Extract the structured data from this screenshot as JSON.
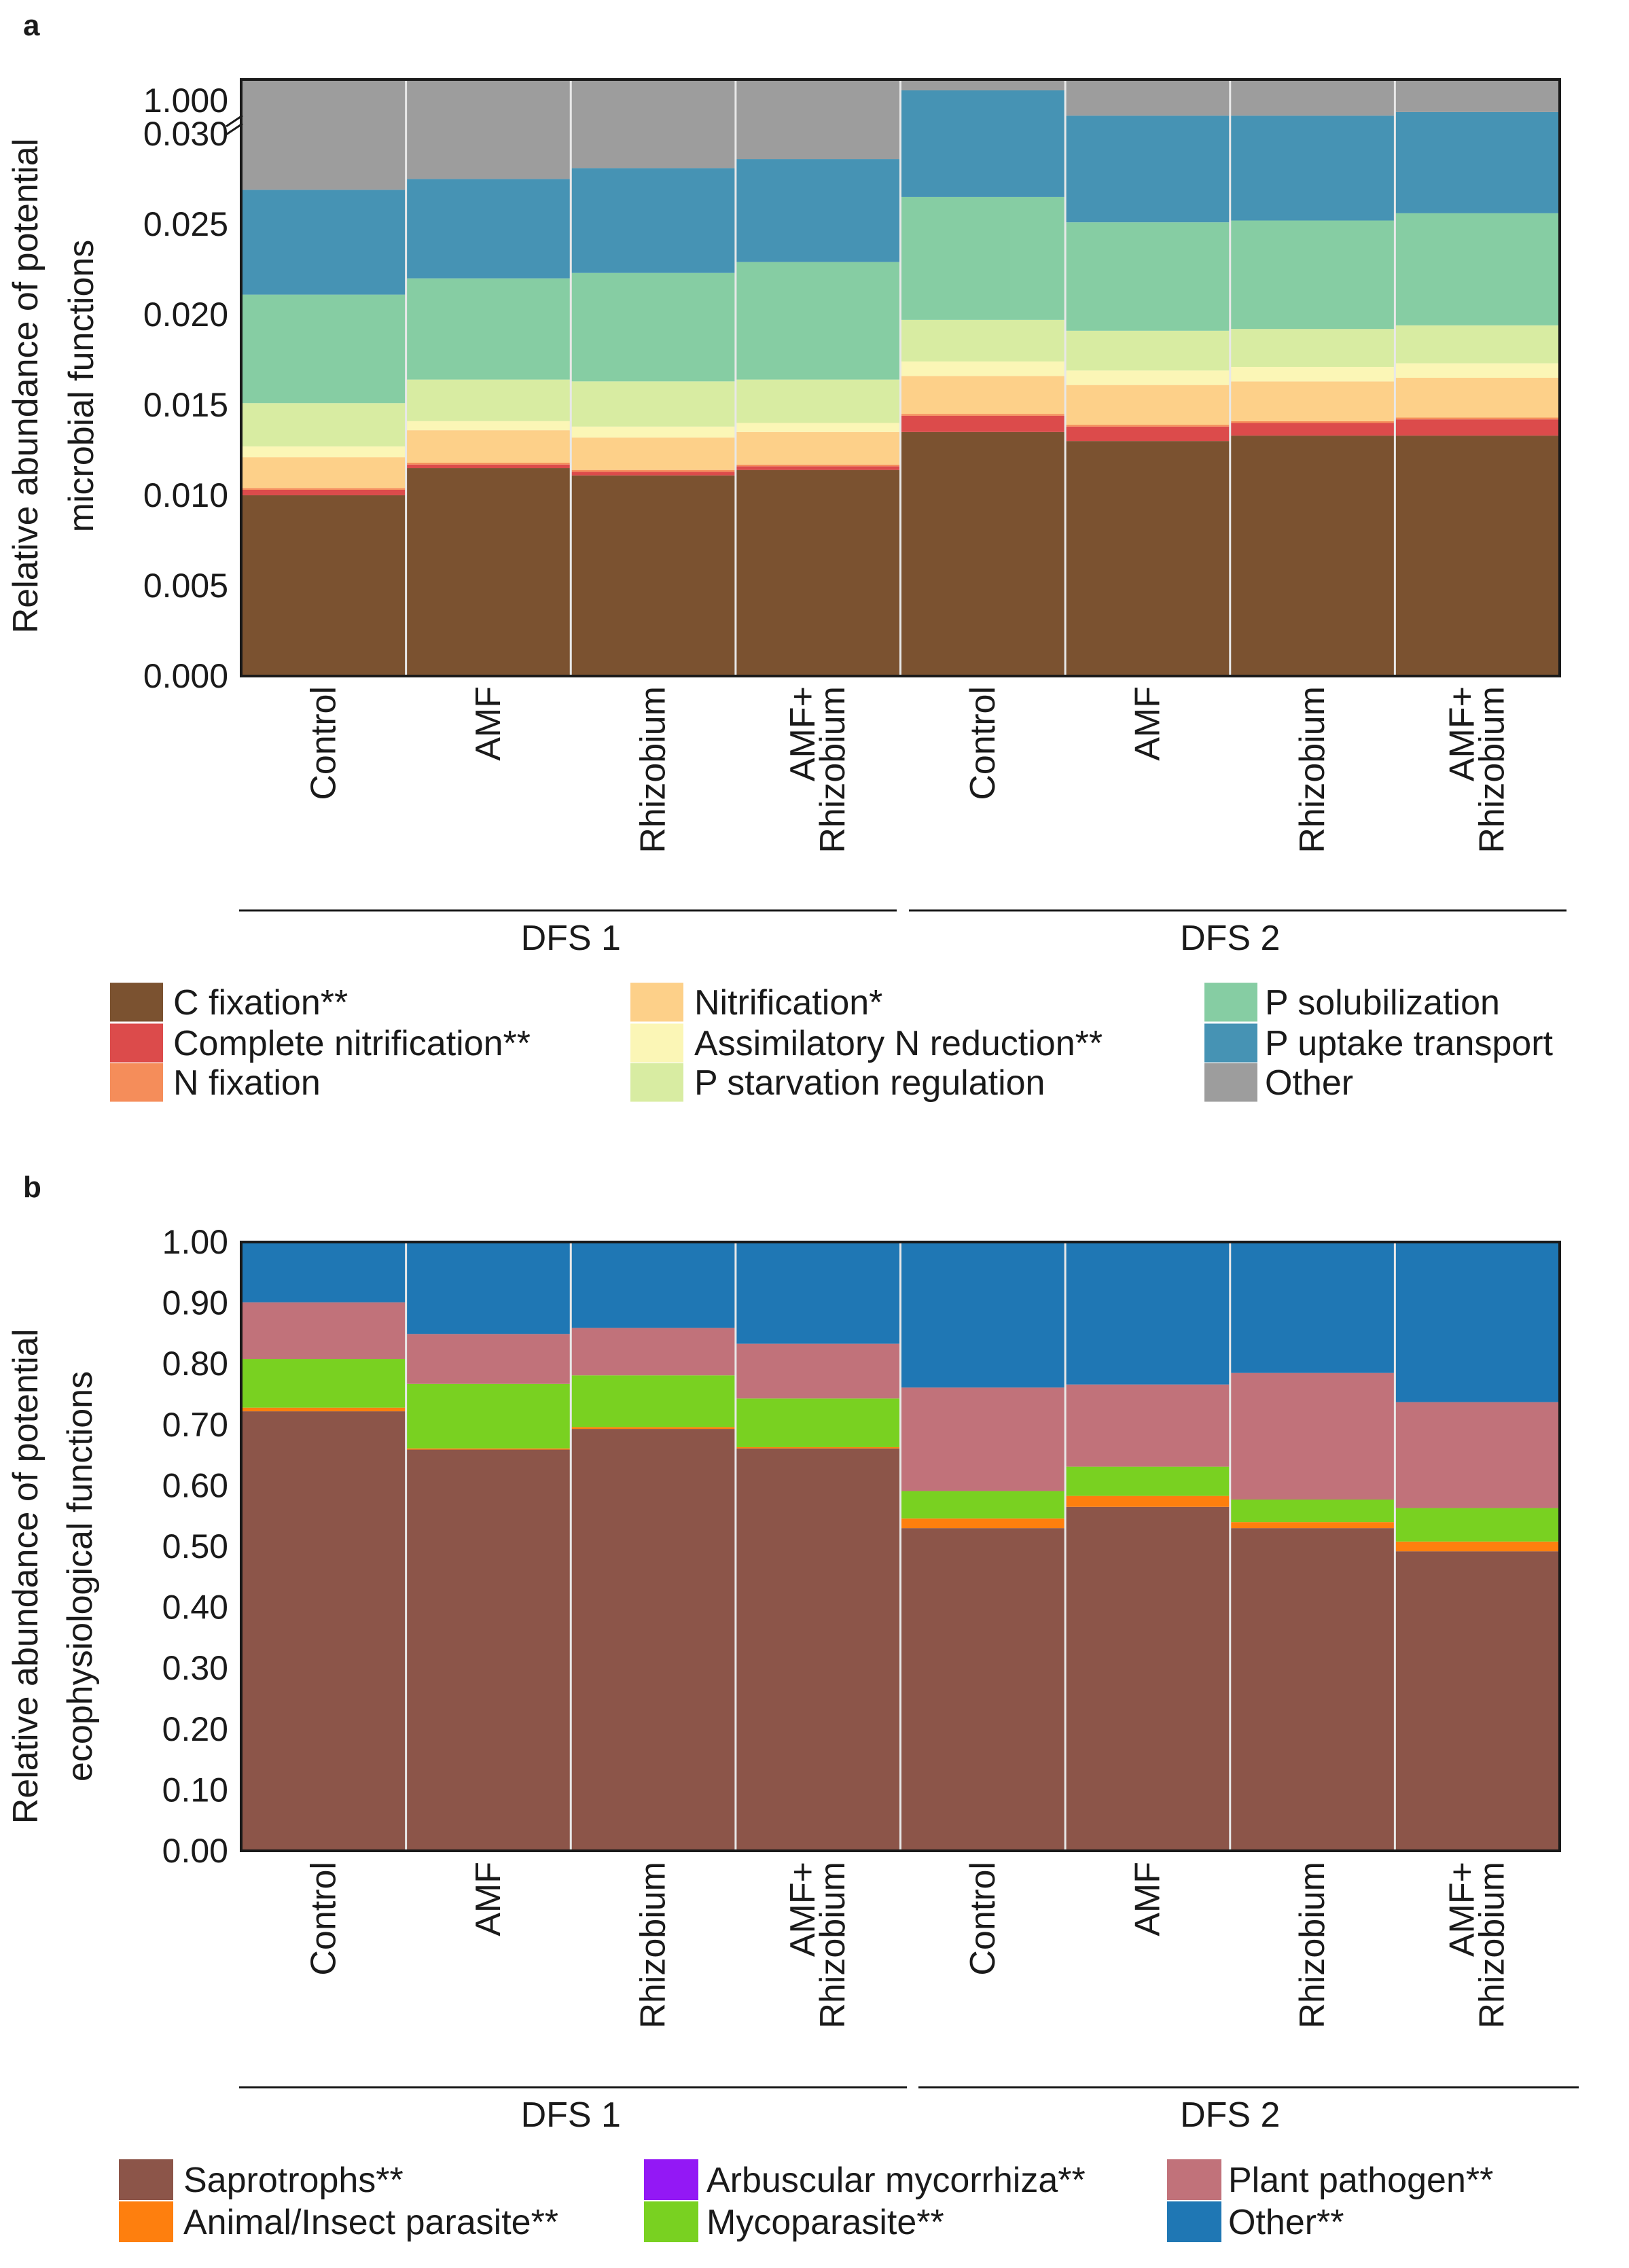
{
  "chart_data": [
    {
      "type": "bar",
      "stacked": true,
      "panel": "a",
      "ylabel_lines": [
        "Relative abundance of potential",
        "microbial functions"
      ],
      "yticks": [
        "0.000",
        "0.005",
        "0.010",
        "0.015",
        "0.020",
        "0.025",
        "0.030",
        "1.000"
      ],
      "ylim": [
        0,
        0.033
      ],
      "axis_break": true,
      "categories": [
        [
          "Control"
        ],
        [
          "AMF"
        ],
        [
          "Rhizobium"
        ],
        [
          "AMF+",
          "Rhizobium"
        ],
        [
          "Control"
        ],
        [
          "AMF"
        ],
        [
          "Rhizobium"
        ],
        [
          "AMF+",
          "Rhizobium"
        ]
      ],
      "groups": [
        {
          "label": "DFS 1",
          "members": [
            0,
            1,
            2,
            3
          ]
        },
        {
          "label": "DFS 2",
          "members": [
            4,
            5,
            6,
            7
          ]
        }
      ],
      "series": [
        {
          "name": "C fixation**",
          "color": "#7b5230",
          "values": [
            0.01,
            0.0115,
            0.0111,
            0.0114,
            0.0135,
            0.013,
            0.0133,
            0.0133
          ]
        },
        {
          "name": "Complete nitrification**",
          "color": "#dc4b4b",
          "values": [
            0.0003,
            0.0002,
            0.0002,
            0.0002,
            0.0009,
            0.0008,
            0.0007,
            0.0009
          ]
        },
        {
          "name": "N fixation",
          "color": "#f58d5a",
          "values": [
            0.0001,
            0.0001,
            0.0001,
            0.0001,
            0.0001,
            0.0001,
            0.0001,
            0.0001
          ]
        },
        {
          "name": "Nitrification*",
          "color": "#fdd089",
          "values": [
            0.0017,
            0.0018,
            0.0018,
            0.0018,
            0.0021,
            0.0022,
            0.0022,
            0.0022
          ]
        },
        {
          "name": "Assimilatory N reduction**",
          "color": "#fbf6b6",
          "values": [
            0.0006,
            0.0005,
            0.0006,
            0.0005,
            0.0008,
            0.0008,
            0.0008,
            0.0008
          ]
        },
        {
          "name": "P starvation regulation",
          "color": "#d8eca2",
          "values": [
            0.0024,
            0.0023,
            0.0025,
            0.0024,
            0.0023,
            0.0022,
            0.0021,
            0.0021
          ]
        },
        {
          "name": "P solubilization",
          "color": "#86cda3",
          "values": [
            0.006,
            0.0056,
            0.006,
            0.0065,
            0.0068,
            0.006,
            0.006,
            0.0062
          ]
        },
        {
          "name": "P uptake transport",
          "color": "#4693b4",
          "values": [
            0.0058,
            0.0055,
            0.0058,
            0.0057,
            0.0059,
            0.0059,
            0.0058,
            0.0056
          ]
        },
        {
          "name": "Other",
          "color": "#9d9d9d",
          "values": [
            0.9731,
            0.9725,
            0.9719,
            0.9714,
            0.9676,
            0.969,
            0.969,
            0.9688
          ]
        }
      ]
    },
    {
      "type": "bar",
      "stacked": true,
      "panel": "b",
      "ylabel_lines": [
        "Relative abundance of potential",
        "ecophysiological  functions"
      ],
      "yticks": [
        "0.00",
        "0.10",
        "0.20",
        "0.30",
        "0.40",
        "0.50",
        "0.60",
        "0.70",
        "0.80",
        "0.90",
        "1.00"
      ],
      "ylim": [
        0,
        1.0
      ],
      "categories": [
        [
          "Control"
        ],
        [
          "AMF"
        ],
        [
          "Rhizobium"
        ],
        [
          "AMF+",
          "Rhizobium"
        ],
        [
          "Control"
        ],
        [
          "AMF"
        ],
        [
          "Rhizobium"
        ],
        [
          "AMF+",
          "Rhizobium"
        ]
      ],
      "groups": [
        {
          "label": "DFS 1",
          "members": [
            0,
            1,
            2,
            3
          ]
        },
        {
          "label": "DFS 2",
          "members": [
            4,
            5,
            6,
            7
          ]
        }
      ],
      "series": [
        {
          "name": "Saprotrophs**",
          "color": "#8c5549",
          "values": [
            0.722,
            0.659,
            0.693,
            0.661,
            0.53,
            0.565,
            0.53,
            0.492
          ]
        },
        {
          "name": "Animal/Insect parasite**",
          "color": "#fe7f0e",
          "values": [
            0.006,
            0.002,
            0.003,
            0.002,
            0.016,
            0.018,
            0.01,
            0.016
          ]
        },
        {
          "name": "Arbuscular mycorrhiza**",
          "color": "#9318f5",
          "values": [
            0.0,
            0.0,
            0.0,
            0.0,
            0.0,
            0.0,
            0.0,
            0.0
          ]
        },
        {
          "name": "Mycoparasite**",
          "color": "#79d121",
          "values": [
            0.08,
            0.106,
            0.085,
            0.08,
            0.045,
            0.048,
            0.037,
            0.055
          ]
        },
        {
          "name": "Plant pathogen**",
          "color": "#c1727a",
          "values": [
            0.093,
            0.082,
            0.078,
            0.09,
            0.17,
            0.135,
            0.208,
            0.174
          ]
        },
        {
          "name": "Other**",
          "color": "#1f77b4",
          "values": [
            0.099,
            0.151,
            0.141,
            0.167,
            0.239,
            0.234,
            0.215,
            0.263
          ]
        }
      ]
    }
  ],
  "panel_labels": {
    "a": "a",
    "b": "b"
  }
}
